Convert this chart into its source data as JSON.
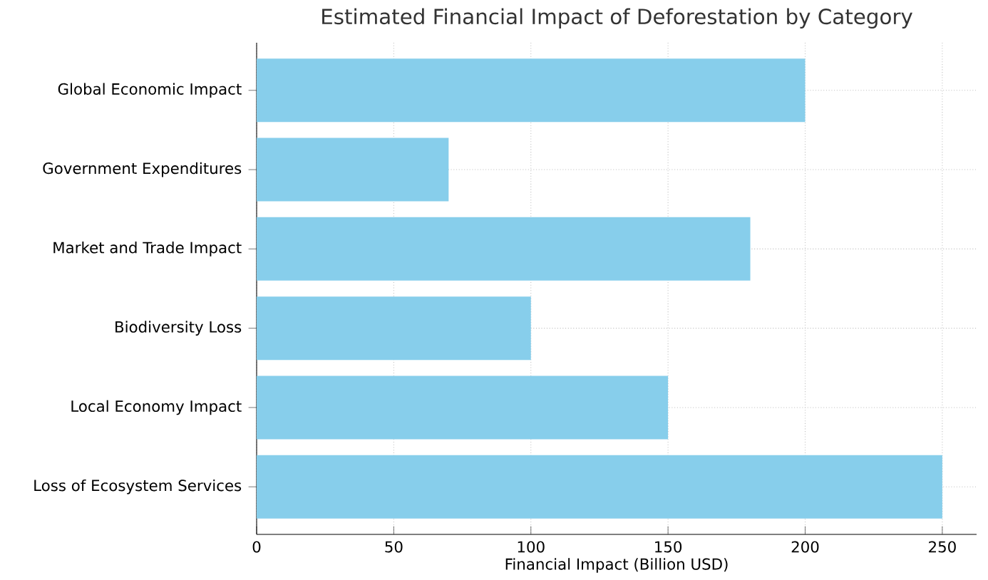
{
  "chart_data": {
    "type": "bar",
    "orientation": "horizontal",
    "title": "Estimated Financial Impact of Deforestation by Category",
    "xlabel": "Financial Impact (Billion USD)",
    "categories": [
      "Global Economic Impact",
      "Government Expenditures",
      "Market and Trade Impact",
      "Biodiversity Loss",
      "Local Economy Impact",
      "Loss of Ecosystem Services"
    ],
    "values": [
      200,
      70,
      180,
      100,
      150,
      250
    ],
    "color": "#87ceeb",
    "xlim": [
      0,
      262.5
    ],
    "xticks": [
      0,
      50,
      100,
      150,
      200,
      250
    ],
    "grid": true
  }
}
